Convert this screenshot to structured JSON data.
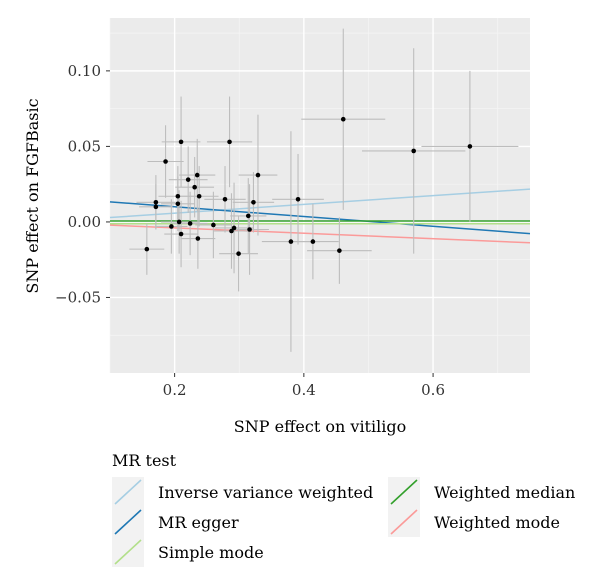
{
  "chart_data": {
    "type": "scatter",
    "xlabel": "SNP effect on vitiligo",
    "ylabel": "SNP effect on FGFBasic",
    "xlim": [
      0.1,
      0.75
    ],
    "ylim": [
      -0.1,
      0.135
    ],
    "xticks": [
      0.2,
      0.4,
      0.6
    ],
    "xtick_labels": [
      "0.2",
      "0.4",
      "0.6"
    ],
    "yticks": [
      -0.05,
      0.0,
      0.05,
      0.1
    ],
    "ytick_labels": [
      "−0.05",
      "0.00",
      "0.05",
      "0.10"
    ],
    "grid": true,
    "legend_position": "bottom",
    "legend_title": "MR test",
    "points": [
      {
        "x": 0.157,
        "y": -0.018,
        "xerr": 0.027,
        "yerr": 0.017
      },
      {
        "x": 0.171,
        "y": 0.013,
        "xerr": 0.03,
        "yerr": 0.018
      },
      {
        "x": 0.171,
        "y": 0.01,
        "xerr": 0.026,
        "yerr": 0.015
      },
      {
        "x": 0.186,
        "y": 0.04,
        "xerr": 0.028,
        "yerr": 0.024
      },
      {
        "x": 0.195,
        "y": -0.003,
        "xerr": 0.025,
        "yerr": 0.018
      },
      {
        "x": 0.205,
        "y": 0.017,
        "xerr": 0.03,
        "yerr": 0.02
      },
      {
        "x": 0.205,
        "y": 0.012,
        "xerr": 0.026,
        "yerr": 0.018
      },
      {
        "x": 0.207,
        "y": 0.0,
        "xerr": 0.028,
        "yerr": 0.021
      },
      {
        "x": 0.21,
        "y": 0.053,
        "xerr": 0.03,
        "yerr": 0.03
      },
      {
        "x": 0.21,
        "y": -0.008,
        "xerr": 0.026,
        "yerr": 0.022
      },
      {
        "x": 0.221,
        "y": 0.028,
        "xerr": 0.03,
        "yerr": 0.022
      },
      {
        "x": 0.224,
        "y": -0.001,
        "xerr": 0.027,
        "yerr": 0.021
      },
      {
        "x": 0.231,
        "y": 0.023,
        "xerr": 0.03,
        "yerr": 0.02
      },
      {
        "x": 0.235,
        "y": 0.031,
        "xerr": 0.028,
        "yerr": 0.024
      },
      {
        "x": 0.236,
        "y": -0.011,
        "xerr": 0.027,
        "yerr": 0.02
      },
      {
        "x": 0.238,
        "y": 0.017,
        "xerr": 0.03,
        "yerr": 0.02
      },
      {
        "x": 0.26,
        "y": -0.002,
        "xerr": 0.028,
        "yerr": 0.022
      },
      {
        "x": 0.278,
        "y": 0.015,
        "xerr": 0.032,
        "yerr": 0.022
      },
      {
        "x": 0.285,
        "y": 0.053,
        "xerr": 0.035,
        "yerr": 0.03
      },
      {
        "x": 0.288,
        "y": -0.006,
        "xerr": 0.028,
        "yerr": 0.025
      },
      {
        "x": 0.292,
        "y": -0.004,
        "xerr": 0.03,
        "yerr": 0.03
      },
      {
        "x": 0.299,
        "y": -0.021,
        "xerr": 0.03,
        "yerr": 0.025
      },
      {
        "x": 0.314,
        "y": 0.004,
        "xerr": 0.028,
        "yerr": 0.025
      },
      {
        "x": 0.316,
        "y": -0.005,
        "xerr": 0.03,
        "yerr": 0.03
      },
      {
        "x": 0.322,
        "y": 0.013,
        "xerr": 0.032,
        "yerr": 0.02
      },
      {
        "x": 0.329,
        "y": 0.031,
        "xerr": 0.03,
        "yerr": 0.04
      },
      {
        "x": 0.38,
        "y": -0.013,
        "xerr": 0.045,
        "yerr": 0.073
      },
      {
        "x": 0.391,
        "y": 0.015,
        "xerr": 0.04,
        "yerr": 0.03
      },
      {
        "x": 0.414,
        "y": -0.013,
        "xerr": 0.04,
        "yerr": 0.025
      },
      {
        "x": 0.455,
        "y": -0.019,
        "xerr": 0.05,
        "yerr": 0.022
      },
      {
        "x": 0.461,
        "y": 0.068,
        "xerr": 0.065,
        "yerr": 0.06
      },
      {
        "x": 0.57,
        "y": 0.047,
        "xerr": 0.08,
        "yerr": 0.068
      },
      {
        "x": 0.657,
        "y": 0.05,
        "xerr": 0.075,
        "yerr": 0.05
      }
    ],
    "series": [
      {
        "name": "Inverse variance weighted",
        "color": "#a6cee3",
        "intercept": 0.0,
        "slope": 0.029
      },
      {
        "name": "MR egger",
        "color": "#1f78b4",
        "intercept": 0.0165,
        "slope": -0.0323
      },
      {
        "name": "Simple mode",
        "color": "#b2df8a",
        "intercept": -0.0012,
        "slope": 0.0
      },
      {
        "name": "Weighted median",
        "color": "#33a02c",
        "intercept": 0.0006,
        "slope": 0.0
      },
      {
        "name": "Weighted mode",
        "color": "#fb9a99",
        "intercept": -0.0003,
        "slope": -0.018
      }
    ]
  }
}
